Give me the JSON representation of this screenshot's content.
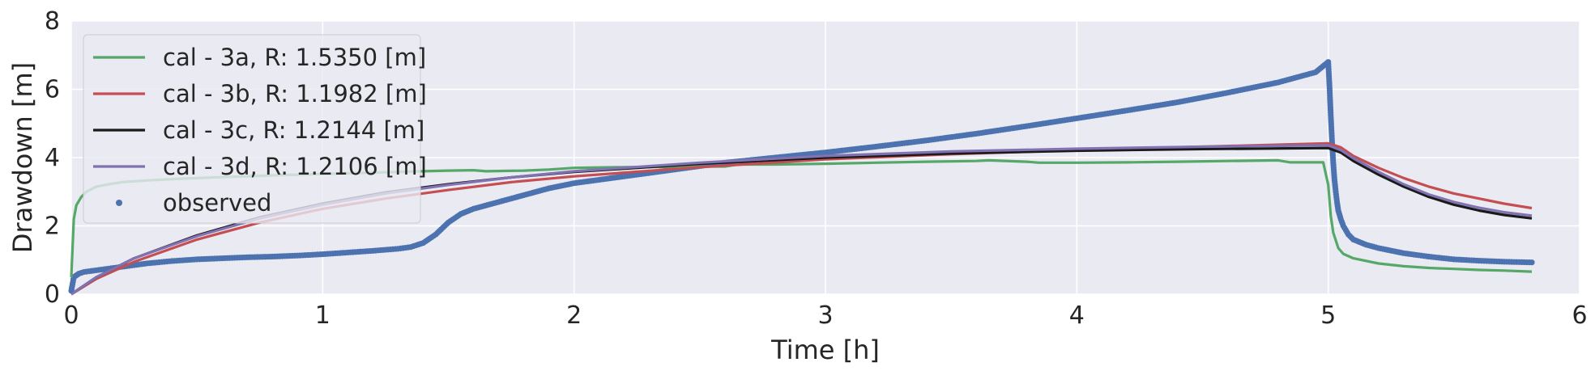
{
  "chart_data": {
    "type": "line",
    "xlabel": "Time [h]",
    "ylabel": "Drawdown [m]",
    "xlim": [
      0,
      6
    ],
    "ylim": [
      0,
      8
    ],
    "xticks": [
      "0",
      "1",
      "2",
      "3",
      "4",
      "5",
      "6"
    ],
    "yticks": [
      "0",
      "2",
      "4",
      "6",
      "8"
    ],
    "grid": true,
    "legend_position": "upper-left",
    "background": "#eaeaf2",
    "series": [
      {
        "name": "cal - 3a, R: 1.5350 [m]",
        "color": "#55a868",
        "style": "line",
        "x": [
          0,
          0.01,
          0.02,
          0.04,
          0.06,
          0.1,
          0.15,
          0.2,
          0.3,
          0.4,
          0.5,
          0.6,
          0.7,
          0.8,
          0.9,
          1.0,
          1.1,
          1.2,
          1.3,
          1.4,
          1.5,
          1.6,
          1.65,
          1.8,
          1.9,
          2.0,
          2.2,
          2.4,
          2.6,
          2.65,
          2.8,
          3.0,
          3.2,
          3.4,
          3.6,
          3.65,
          3.8,
          3.85,
          4.0,
          4.2,
          4.4,
          4.6,
          4.8,
          4.85,
          4.98,
          5.0,
          5.01,
          5.02,
          5.04,
          5.06,
          5.1,
          5.2,
          5.3,
          5.4,
          5.5,
          5.6,
          5.7,
          5.81
        ],
        "y": [
          0.5,
          2.2,
          2.6,
          2.85,
          3.0,
          3.15,
          3.22,
          3.28,
          3.33,
          3.37,
          3.4,
          3.43,
          3.45,
          3.48,
          3.5,
          3.52,
          3.54,
          3.56,
          3.58,
          3.6,
          3.62,
          3.63,
          3.6,
          3.62,
          3.65,
          3.7,
          3.72,
          3.73,
          3.74,
          3.8,
          3.8,
          3.82,
          3.85,
          3.88,
          3.9,
          3.92,
          3.88,
          3.85,
          3.85,
          3.86,
          3.88,
          3.9,
          3.92,
          3.86,
          3.86,
          3.2,
          2.3,
          1.8,
          1.35,
          1.18,
          1.05,
          0.9,
          0.82,
          0.77,
          0.74,
          0.71,
          0.69,
          0.66
        ]
      },
      {
        "name": "cal - 3b, R: 1.1982 [m]",
        "color": "#c44e52",
        "style": "line",
        "x": [
          0,
          0.1,
          0.25,
          0.5,
          0.75,
          1.0,
          1.25,
          1.5,
          1.75,
          2.0,
          2.5,
          3.0,
          3.5,
          4.0,
          4.5,
          5.0,
          5.05,
          5.1,
          5.2,
          5.3,
          5.4,
          5.5,
          5.6,
          5.7,
          5.81
        ],
        "y": [
          0,
          0.45,
          0.95,
          1.6,
          2.1,
          2.5,
          2.8,
          3.05,
          3.28,
          3.45,
          3.72,
          3.95,
          4.1,
          4.22,
          4.32,
          4.42,
          4.3,
          4.05,
          3.7,
          3.4,
          3.15,
          2.95,
          2.8,
          2.65,
          2.52
        ]
      },
      {
        "name": "cal - 3c, R: 1.2144 [m]",
        "color": "#1a1a1a",
        "style": "line",
        "x": [
          0,
          0.1,
          0.25,
          0.5,
          0.75,
          1.0,
          1.25,
          1.5,
          1.75,
          2.0,
          2.5,
          3.0,
          3.5,
          4.0,
          4.5,
          5.0,
          5.05,
          5.1,
          5.2,
          5.3,
          5.4,
          5.5,
          5.6,
          5.7,
          5.81
        ],
        "y": [
          0,
          0.5,
          1.05,
          1.72,
          2.25,
          2.65,
          2.98,
          3.22,
          3.42,
          3.58,
          3.82,
          4.0,
          4.12,
          4.2,
          4.25,
          4.28,
          4.15,
          3.9,
          3.5,
          3.15,
          2.85,
          2.62,
          2.45,
          2.32,
          2.22
        ]
      },
      {
        "name": "cal - 3d, R: 1.2106 [m]",
        "color": "#8172b2",
        "style": "line",
        "x": [
          0,
          0.1,
          0.25,
          0.5,
          0.75,
          1.0,
          1.25,
          1.5,
          1.75,
          2.0,
          2.5,
          3.0,
          3.5,
          4.0,
          4.5,
          5.0,
          5.05,
          5.1,
          5.2,
          5.3,
          5.4,
          5.5,
          5.6,
          5.7,
          5.81
        ],
        "y": [
          0,
          0.5,
          1.05,
          1.7,
          2.22,
          2.62,
          2.95,
          3.2,
          3.42,
          3.6,
          3.85,
          4.05,
          4.18,
          4.26,
          4.32,
          4.36,
          4.22,
          3.98,
          3.58,
          3.22,
          2.92,
          2.7,
          2.53,
          2.4,
          2.3
        ]
      },
      {
        "name": "observed",
        "color": "#4c72b0",
        "style": "markers",
        "x": [
          0,
          0.01,
          0.03,
          0.05,
          0.1,
          0.2,
          0.3,
          0.4,
          0.5,
          0.6,
          0.7,
          0.8,
          0.9,
          1.0,
          1.1,
          1.2,
          1.3,
          1.35,
          1.4,
          1.45,
          1.5,
          1.55,
          1.6,
          1.7,
          1.8,
          1.9,
          2.0,
          2.2,
          2.4,
          2.6,
          2.8,
          3.0,
          3.2,
          3.4,
          3.6,
          3.8,
          4.0,
          4.2,
          4.4,
          4.6,
          4.8,
          4.95,
          5.0,
          5.005,
          5.01,
          5.015,
          5.02,
          5.025,
          5.03,
          5.035,
          5.04,
          5.05,
          5.06,
          5.08,
          5.1,
          5.15,
          5.2,
          5.3,
          5.4,
          5.5,
          5.6,
          5.7,
          5.81
        ],
        "y": [
          0.1,
          0.5,
          0.6,
          0.65,
          0.7,
          0.8,
          0.9,
          0.97,
          1.02,
          1.05,
          1.08,
          1.1,
          1.13,
          1.17,
          1.22,
          1.27,
          1.33,
          1.38,
          1.5,
          1.75,
          2.1,
          2.35,
          2.5,
          2.7,
          2.9,
          3.1,
          3.25,
          3.45,
          3.65,
          3.85,
          4.0,
          4.15,
          4.32,
          4.5,
          4.7,
          4.92,
          5.15,
          5.38,
          5.62,
          5.9,
          6.2,
          6.5,
          6.8,
          6.1,
          5.25,
          4.5,
          3.85,
          3.35,
          3.0,
          2.7,
          2.45,
          2.2,
          2.0,
          1.75,
          1.6,
          1.45,
          1.35,
          1.2,
          1.1,
          1.02,
          0.98,
          0.95,
          0.93
        ]
      }
    ]
  }
}
